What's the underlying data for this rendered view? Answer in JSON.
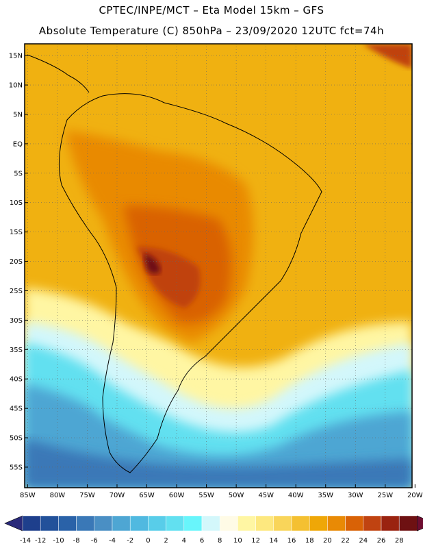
{
  "header": {
    "line1": "CPTEC/INPE/MCT –  Eta Model 15km – GFS",
    "line2": "Absolute Temperature (C) 850hPa – 23/09/2020 12UTC fct=74h"
  },
  "map": {
    "lat_labels": [
      "15N",
      "10N",
      "5N",
      "EQ",
      "5S",
      "10S",
      "15S",
      "20S",
      "25S",
      "30S",
      "35S",
      "40S",
      "45S",
      "50S",
      "55S"
    ],
    "lon_labels": [
      "85W",
      "80W",
      "75W",
      "70W",
      "65W",
      "60W",
      "55W",
      "50W",
      "45W",
      "40W",
      "35W",
      "30W",
      "25W",
      "20W"
    ],
    "lat_range": [
      17,
      -58.5
    ],
    "lon_range": [
      -85.5,
      -20.5
    ]
  },
  "colorbar": {
    "labels": [
      "-14",
      "-12",
      "-10",
      "-8",
      "-6",
      "-4",
      "-2",
      "0",
      "2",
      "4",
      "6",
      "8",
      "10",
      "12",
      "14",
      "16",
      "18",
      "20",
      "22",
      "24",
      "26",
      "28"
    ],
    "colors": [
      "#1e3f8c",
      "#22519a",
      "#2a62a8",
      "#3a78b7",
      "#4a8fc4",
      "#4ea6d3",
      "#50b9e0",
      "#58cde9",
      "#62e0f0",
      "#68f5fb",
      "#d3f7fb",
      "#fffbe6",
      "#fff6a3",
      "#fde87f",
      "#f9d55a",
      "#f4c031",
      "#efa707",
      "#e98a05",
      "#d96206",
      "#c04311",
      "#9a2310",
      "#6e1112"
    ],
    "min_color": "#2a2a7a",
    "max_color": "#6e0d30"
  }
}
